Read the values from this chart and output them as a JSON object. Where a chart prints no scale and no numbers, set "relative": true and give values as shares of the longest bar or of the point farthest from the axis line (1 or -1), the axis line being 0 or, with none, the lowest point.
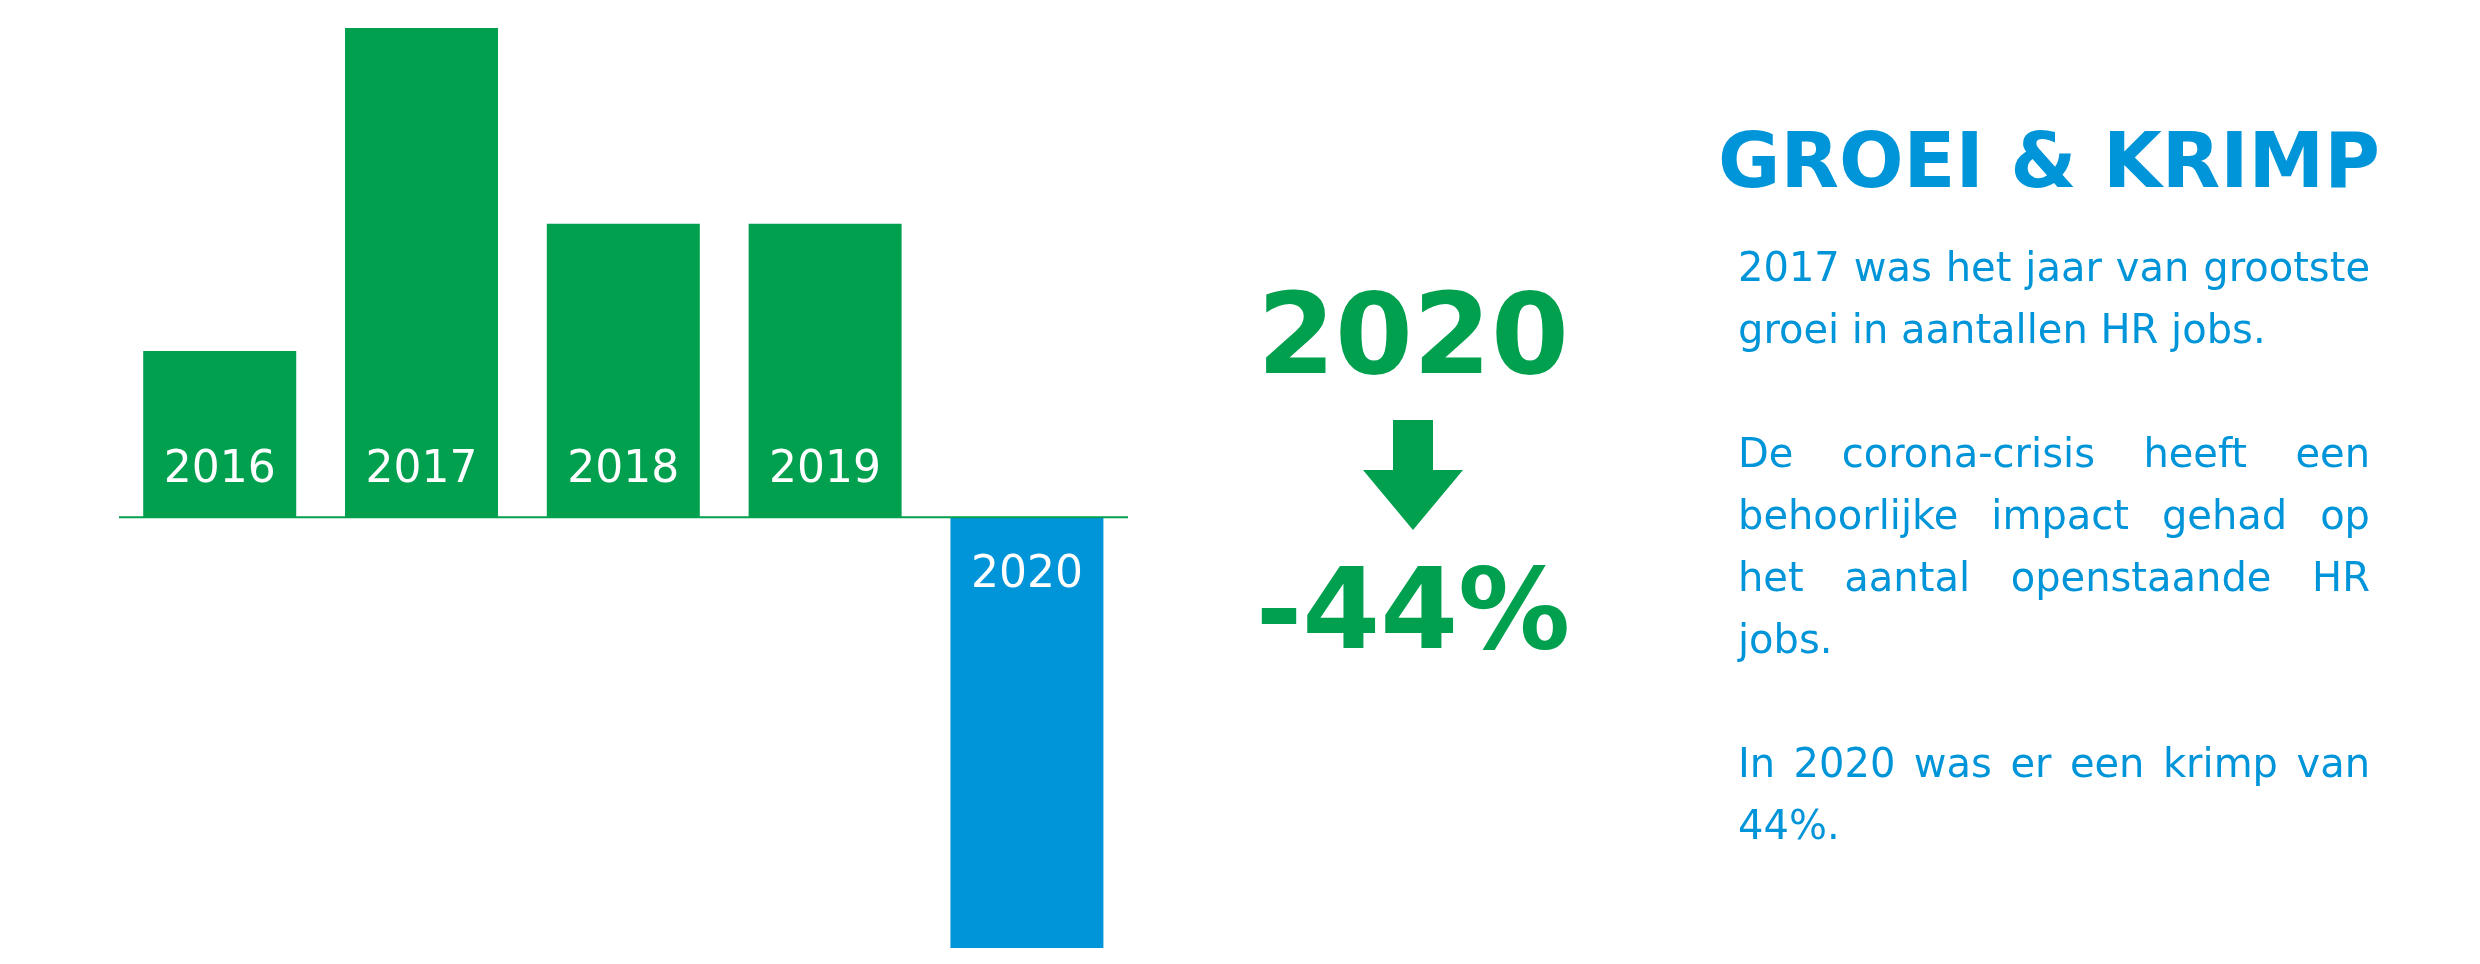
{
  "chart_data": {
    "type": "bar",
    "title": "GROEI & KRIMP",
    "relative": true,
    "categories": [
      "2016",
      "2017",
      "2018",
      "2019",
      "2020"
    ],
    "values": [
      0.34,
      1,
      0.6,
      0.6,
      -0.88
    ],
    "colors": [
      "#00a04f",
      "#00a04f",
      "#00a04f",
      "#00a04f",
      "#0095d9"
    ],
    "annotations": [
      "2020",
      "-44%",
      "2017 was het jaar van grootste groei in aantallen HR jobs.",
      "De corona-crisis heeft een behoorlijke impact gehad op het aantal openstaande HR jobs.",
      "In 2020 was er een krimp van 44%."
    ]
  }
}
